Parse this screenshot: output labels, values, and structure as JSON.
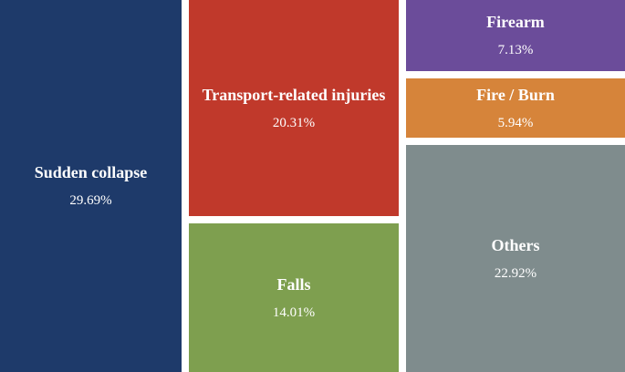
{
  "chart_data": {
    "type": "treemap",
    "title": "",
    "value_unit": "%",
    "items": [
      {
        "label": "Sudden collapse",
        "value": 29.69,
        "value_text": "29.69%",
        "color": "#1e3a6a"
      },
      {
        "label": "Transport-related injuries",
        "value": 20.31,
        "value_text": "20.31%",
        "color": "#c0392b"
      },
      {
        "label": "Falls",
        "value": 14.01,
        "value_text": "14.01%",
        "color": "#7e9f4f"
      },
      {
        "label": "Firearm",
        "value": 7.13,
        "value_text": "7.13%",
        "color": "#6b4c9a"
      },
      {
        "label": "Fire / Burn",
        "value": 5.94,
        "value_text": "5.94%",
        "color": "#d6843a"
      },
      {
        "label": "Others",
        "value": 22.92,
        "value_text": "22.92%",
        "color": "#7f8c8d"
      }
    ]
  }
}
